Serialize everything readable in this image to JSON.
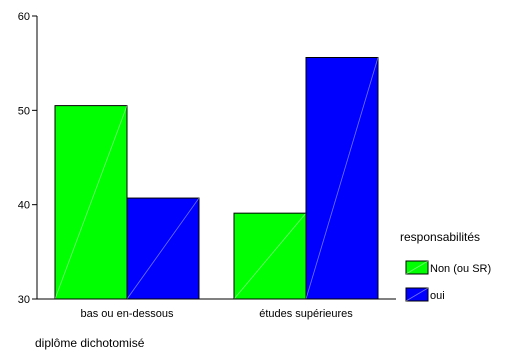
{
  "chart_data": {
    "type": "bar",
    "categories": [
      "bas ou en-dessous",
      "études supérieures"
    ],
    "series": [
      {
        "name": "Non (ou SR)",
        "values": [
          50.5,
          39.1
        ],
        "color": "#00ff00"
      },
      {
        "name": "oui",
        "values": [
          40.7,
          55.6
        ],
        "color": "#0000ff"
      }
    ],
    "xlabel": "diplôme dichotomisé",
    "ylabel": "",
    "ylim": [
      30,
      60
    ],
    "yticks": [
      30,
      40,
      50,
      60
    ],
    "grid": false,
    "legend": {
      "title": "responsabilités",
      "placement": "right"
    }
  }
}
